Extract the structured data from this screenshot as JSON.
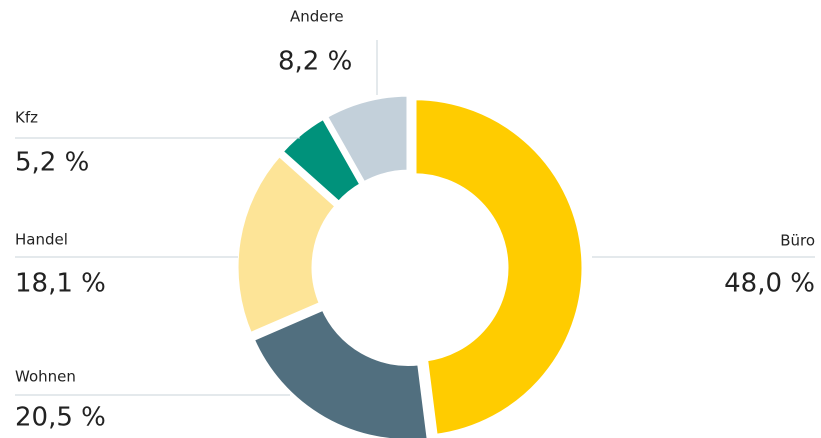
{
  "chart_data": {
    "type": "donut",
    "categories": [
      "Büro",
      "Wohnen",
      "Handel",
      "Kfz",
      "Andere"
    ],
    "values": [
      48.0,
      20.5,
      18.1,
      5.2,
      8.2
    ],
    "value_labels": [
      "48,0 %",
      "20,5 %",
      "18,1 %",
      "5,2 %",
      "8,2 %"
    ],
    "colors": [
      "#ffcc00",
      "#516f7f",
      "#fde497",
      "#00927b",
      "#c3d0da"
    ]
  }
}
